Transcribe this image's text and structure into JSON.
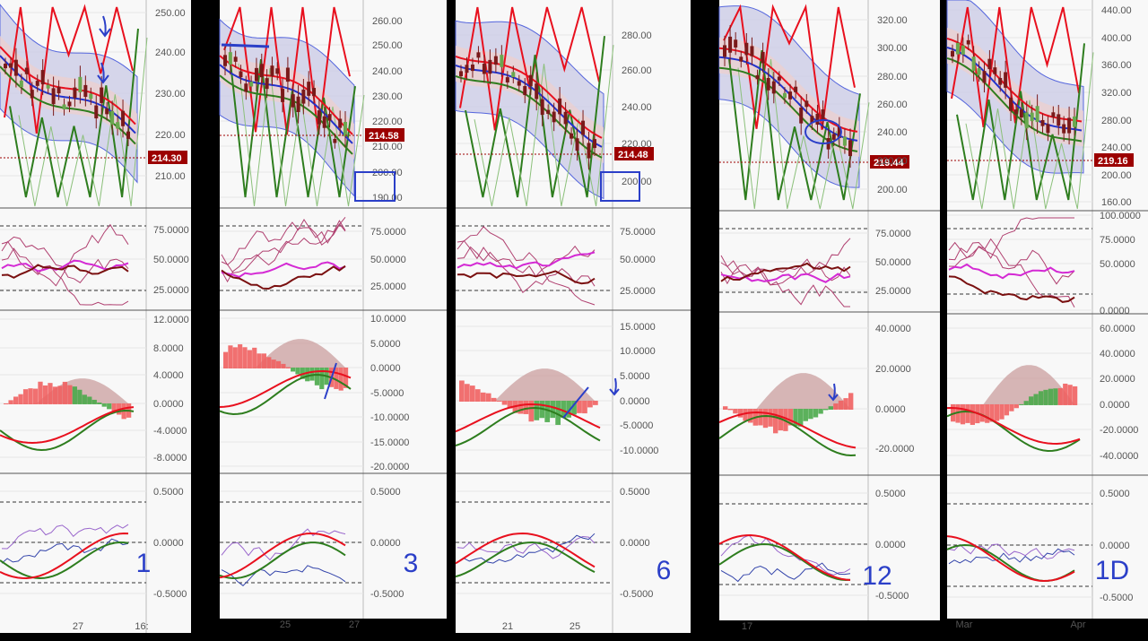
{
  "colors": {
    "bg": "#000000",
    "panel": "#f8f8f8",
    "grid": "#e6e6e6",
    "axis_text": "#555555",
    "red": "#e8101e",
    "green": "#2e7d1e",
    "blue": "#2233cc",
    "candle": "#7a1a1a",
    "band_fill": "#c9c9e6",
    "mid_fill": "#ebcfcf",
    "price_tag": "#9c0000",
    "magenta": "#d42ad4",
    "maroon": "#7a1010",
    "pink_line": "#b04070",
    "hist_red": "#f06060",
    "hist_green": "#4aa84a",
    "hist_shadow": "#c89898",
    "violet": "#9966cc",
    "navy": "#3344aa",
    "annotation": "#2b3fc8"
  },
  "chart_data": [
    {
      "type": "panel-group",
      "label": "1",
      "price_axis": {
        "ticks": [
          "250.00",
          "240.00",
          "230.00",
          "220.00",
          "210.00"
        ],
        "current_price": "214.30"
      },
      "stoch_axis": {
        "ticks": [
          "75.0000",
          "50.0000",
          "25.0000"
        ]
      },
      "macd_axis": {
        "ticks": [
          "12.0000",
          "8.0000",
          "4.0000",
          "0.0000",
          "-4.0000",
          "-8.0000"
        ]
      },
      "osc_axis": {
        "ticks": [
          "0.5000",
          "0.0000",
          "-0.5000"
        ]
      },
      "x_ticks": [
        "27",
        "16:"
      ]
    },
    {
      "type": "panel-group",
      "label": "3",
      "price_axis": {
        "ticks": [
          "260.00",
          "250.00",
          "240.00",
          "230.00",
          "220.00",
          "210.00",
          "200.00",
          "190.00"
        ],
        "current_price": "214.58"
      },
      "stoch_axis": {
        "ticks": [
          "75.0000",
          "50.0000",
          "25.0000"
        ]
      },
      "macd_axis": {
        "ticks": [
          "10.0000",
          "5.0000",
          "0.0000",
          "-5.0000",
          "-10.0000",
          "-15.0000",
          "-20.0000"
        ]
      },
      "osc_axis": {
        "ticks": [
          "0.5000",
          "0.0000",
          "-0.5000"
        ]
      },
      "x_ticks": [
        "25",
        "27"
      ]
    },
    {
      "type": "panel-group",
      "label": "6",
      "price_axis": {
        "ticks": [
          "280.00",
          "260.00",
          "240.00",
          "220.00",
          "200.00"
        ],
        "current_price": "214.48"
      },
      "stoch_axis": {
        "ticks": [
          "75.0000",
          "50.0000",
          "25.0000"
        ]
      },
      "macd_axis": {
        "ticks": [
          "15.0000",
          "10.0000",
          "5.0000",
          "0.0000",
          "-5.0000",
          "-10.0000"
        ]
      },
      "osc_axis": {
        "ticks": [
          "0.5000",
          "0.0000",
          "-0.5000"
        ]
      },
      "x_ticks": [
        "21",
        "25"
      ]
    },
    {
      "type": "panel-group",
      "label": "12",
      "price_axis": {
        "ticks": [
          "320.00",
          "300.00",
          "280.00",
          "260.00",
          "240.00",
          "220.00",
          "200.00"
        ],
        "current_price": "219.44"
      },
      "stoch_axis": {
        "ticks": [
          "75.0000",
          "50.0000",
          "25.0000"
        ]
      },
      "macd_axis": {
        "ticks": [
          "40.0000",
          "20.0000",
          "0.0000",
          "-20.0000"
        ]
      },
      "osc_axis": {
        "ticks": [
          "0.5000",
          "0.0000",
          "-0.5000"
        ]
      },
      "x_ticks": [
        "17"
      ]
    },
    {
      "type": "panel-group",
      "label": "1D",
      "price_axis": {
        "ticks": [
          "440.00",
          "400.00",
          "360.00",
          "320.00",
          "280.00",
          "240.00",
          "200.00",
          "160.00"
        ],
        "current_price": "219.16"
      },
      "stoch_axis": {
        "ticks": [
          "100.0000",
          "75.0000",
          "50.0000",
          "0.0000"
        ]
      },
      "macd_axis": {
        "ticks": [
          "60.0000",
          "40.0000",
          "20.0000",
          "0.0000",
          "-20.0000",
          "-40.0000"
        ]
      },
      "osc_axis": {
        "ticks": [
          "0.5000",
          "0.0000",
          "-0.5000"
        ]
      },
      "x_ticks": [
        "Mar",
        "Apr"
      ]
    }
  ]
}
